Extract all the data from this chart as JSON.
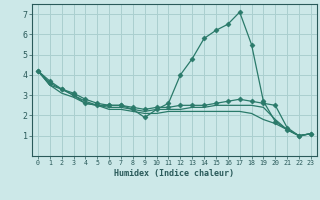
{
  "xlabel": "Humidex (Indice chaleur)",
  "background_color": "#cce8e8",
  "grid_color": "#aacfcf",
  "line_color": "#2a7a6a",
  "xlim": [
    -0.5,
    23.5
  ],
  "ylim": [
    0,
    7.5
  ],
  "xticks": [
    0,
    1,
    2,
    3,
    4,
    5,
    6,
    7,
    8,
    9,
    10,
    11,
    12,
    13,
    14,
    15,
    16,
    17,
    18,
    19,
    20,
    21,
    22,
    23
  ],
  "yticks": [
    1,
    2,
    3,
    4,
    5,
    6,
    7
  ],
  "lines": [
    {
      "x": [
        0,
        1,
        2,
        3,
        4,
        5,
        6,
        7,
        8,
        9,
        10,
        11,
        12,
        13,
        14,
        15,
        16,
        17,
        18,
        19,
        20,
        21,
        22,
        23
      ],
      "y": [
        4.2,
        3.7,
        3.3,
        3.1,
        2.8,
        2.6,
        2.5,
        2.5,
        2.3,
        1.9,
        2.3,
        2.6,
        4.0,
        4.8,
        5.8,
        6.2,
        6.5,
        7.1,
        5.5,
        2.7,
        1.7,
        1.3,
        1.0,
        1.1
      ],
      "marker": "D",
      "markersize": 2.5
    },
    {
      "x": [
        0,
        1,
        2,
        3,
        4,
        5,
        6,
        7,
        8,
        9,
        10,
        11,
        12,
        13,
        14,
        15,
        16,
        17,
        18,
        19,
        20,
        21,
        22,
        23
      ],
      "y": [
        4.2,
        3.6,
        3.3,
        3.0,
        2.6,
        2.5,
        2.5,
        2.5,
        2.4,
        2.3,
        2.4,
        2.4,
        2.5,
        2.5,
        2.5,
        2.6,
        2.7,
        2.8,
        2.7,
        2.6,
        2.5,
        1.4,
        1.0,
        1.1
      ],
      "marker": "D",
      "markersize": 2.5
    },
    {
      "x": [
        0,
        1,
        2,
        3,
        4,
        5,
        6,
        7,
        8,
        9,
        10,
        11,
        12,
        13,
        14,
        15,
        16,
        17,
        18,
        19,
        20,
        21,
        22,
        23
      ],
      "y": [
        4.2,
        3.5,
        3.3,
        3.0,
        2.7,
        2.5,
        2.4,
        2.4,
        2.3,
        2.2,
        2.3,
        2.3,
        2.3,
        2.4,
        2.4,
        2.5,
        2.5,
        2.5,
        2.5,
        2.4,
        1.8,
        1.3,
        1.0,
        1.1
      ],
      "marker": null,
      "markersize": 0
    },
    {
      "x": [
        0,
        1,
        2,
        3,
        4,
        5,
        6,
        7,
        8,
        9,
        10,
        11,
        12,
        13,
        14,
        15,
        16,
        17,
        18,
        19,
        20,
        21,
        22,
        23
      ],
      "y": [
        4.2,
        3.5,
        3.1,
        2.9,
        2.6,
        2.5,
        2.3,
        2.3,
        2.2,
        2.1,
        2.1,
        2.2,
        2.2,
        2.2,
        2.2,
        2.2,
        2.2,
        2.2,
        2.1,
        1.8,
        1.6,
        1.3,
        1.0,
        1.1
      ],
      "marker": null,
      "markersize": 0
    }
  ],
  "tick_color": "#2a5a5a",
  "xlabel_fontsize": 6.0,
  "xtick_fontsize": 4.8,
  "ytick_fontsize": 6.0
}
